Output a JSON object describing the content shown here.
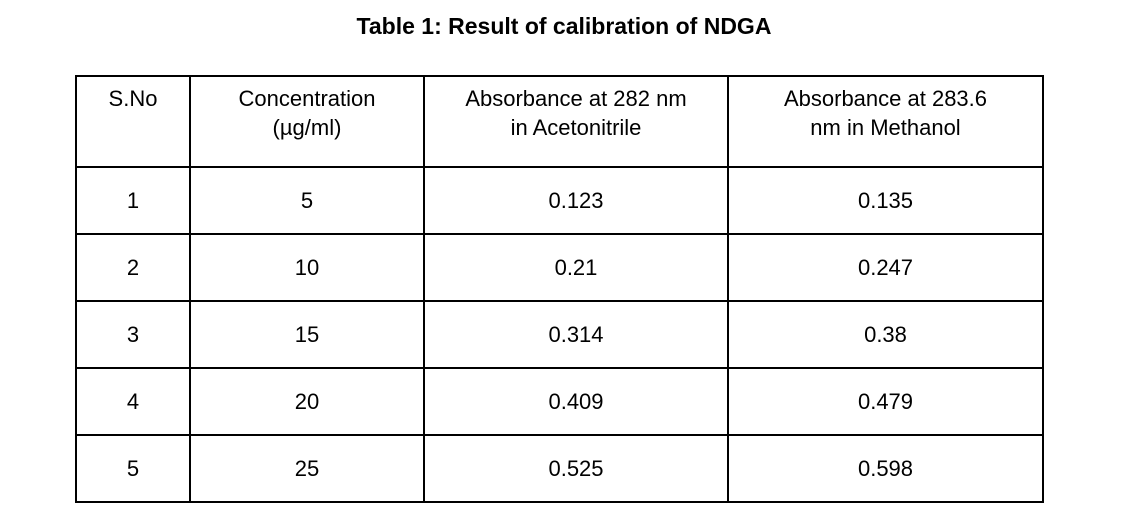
{
  "page": {
    "background": "#ffffff",
    "text_color": "#000000",
    "border_color": "#000000"
  },
  "caption": "Table 1: Result of calibration of NDGA",
  "table": {
    "headers": [
      "S.No",
      "Concentration\n(µg/ml)",
      "Absorbance at 282 nm\nin Acetonitrile",
      "Absorbance at 283.6\nnm in Methanol"
    ],
    "rows": [
      [
        "1",
        "5",
        "0.123",
        "0.135"
      ],
      [
        "2",
        "10",
        "0.21",
        "0.247"
      ],
      [
        "3",
        "15",
        "0.314",
        "0.38"
      ],
      [
        "4",
        "20",
        "0.409",
        "0.479"
      ],
      [
        "5",
        "25",
        "0.525",
        "0.598"
      ]
    ]
  },
  "chart_data": {
    "type": "table",
    "title": "Table 1: Result of calibration of NDGA",
    "columns": [
      "S.No",
      "Concentration (µg/ml)",
      "Absorbance at 282 nm in Acetonitrile",
      "Absorbance at 283.6 nm in Methanol"
    ],
    "s_no": [
      1,
      2,
      3,
      4,
      5
    ],
    "concentration_ug_ml": [
      5,
      10,
      15,
      20,
      25
    ],
    "absorbance_282nm_acetonitrile": [
      0.123,
      0.21,
      0.314,
      0.409,
      0.525
    ],
    "absorbance_283_6nm_methanol": [
      0.135,
      0.247,
      0.38,
      0.479,
      0.598
    ]
  }
}
